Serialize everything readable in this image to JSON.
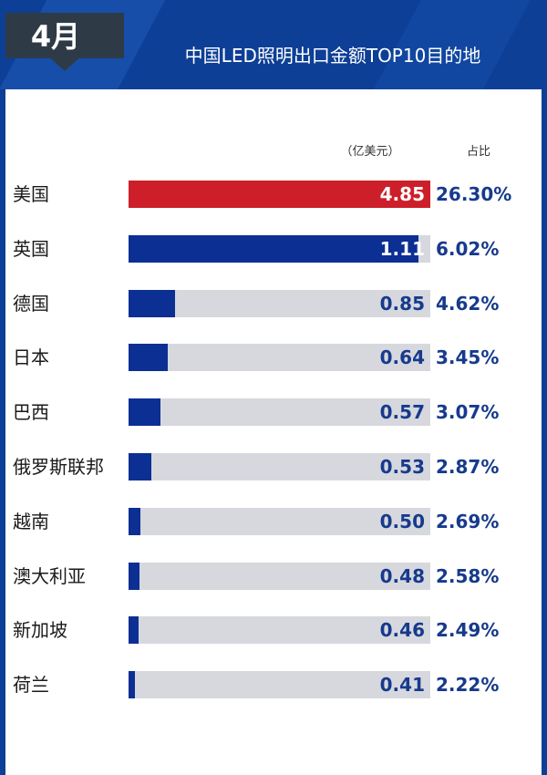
{
  "header": {
    "month": "4月",
    "title": "中国LED照明出口金额TOP10目的地"
  },
  "columns": {
    "unit_label": "（亿美元）",
    "share_label": "占比"
  },
  "colors": {
    "header_blue": "#0d3f96",
    "top_bar": "#cc1f2a",
    "bar": "#0c2f94",
    "track": "#d6d8de",
    "value_text": "#163a8c"
  },
  "chart_data": {
    "type": "bar",
    "orientation": "horizontal",
    "title": "中国LED照明出口金额TOP10目的地",
    "categories": [
      "美国",
      "英国",
      "德国",
      "日本",
      "巴西",
      "俄罗斯联邦",
      "越南",
      "澳大利亚",
      "新加坡",
      "荷兰"
    ],
    "values": [
      4.85,
      1.11,
      0.85,
      0.64,
      0.57,
      0.53,
      0.5,
      0.48,
      0.46,
      0.41
    ],
    "value_labels": [
      "4.85",
      "1.11",
      "0.85",
      "0.64",
      "0.57",
      "0.53",
      "0.50",
      "0.48",
      "0.46",
      "0.41"
    ],
    "shares": [
      "26.30%",
      "6.02%",
      "4.62%",
      "3.45%",
      "3.07%",
      "2.87%",
      "2.69%",
      "2.58%",
      "2.49%",
      "2.22%"
    ],
    "fill_fractions": [
      1.0,
      0.96,
      0.155,
      0.13,
      0.105,
      0.075,
      0.04,
      0.037,
      0.034,
      0.02
    ],
    "highlight_index": 0,
    "unit": "（亿美元）"
  }
}
